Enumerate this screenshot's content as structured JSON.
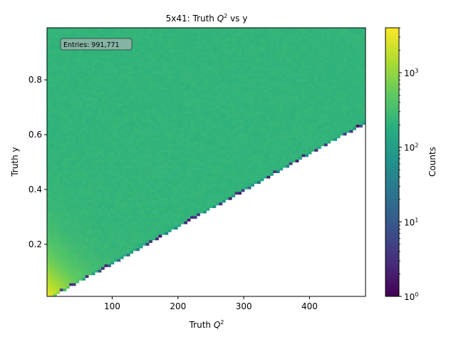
{
  "chart_data": {
    "type": "heatmap",
    "title_prefix": "5x41: Truth ",
    "title_var": "Q",
    "title_sup": "2",
    "title_suffix": " vs y",
    "xlabel_prefix": "Truth ",
    "xlabel_var": "Q",
    "xlabel_sup": "2",
    "ylabel": "Truth y",
    "xlim": [
      1,
      485
    ],
    "ylim": [
      0.01,
      0.99
    ],
    "x_ticks": [
      100,
      200,
      300,
      400
    ],
    "x_tick_labels": [
      "100",
      "200",
      "300",
      "400"
    ],
    "y_ticks": [
      0.2,
      0.4,
      0.6,
      0.8
    ],
    "y_tick_labels": [
      "0.2",
      "0.4",
      "0.6",
      "0.8"
    ],
    "annotation": "Entries: 991,771",
    "annotation_placement": "top-left",
    "kinematic_edge": {
      "description": "lower boundary y_min ≈ Q2/750",
      "slope": 0.001333
    },
    "bins": {
      "nx": 100,
      "ny": 100
    },
    "typical_counts": {
      "upper_region": 220,
      "near_edge": 150,
      "low_q2_low_y_peak": 3500
    },
    "colorbar": {
      "label": "Counts",
      "scale": "log",
      "range": [
        1,
        4000
      ],
      "tick_values": [
        1,
        10,
        100,
        1000
      ],
      "tick_base": "10",
      "tick_exponents": [
        "0",
        "1",
        "2",
        "3"
      ],
      "colormap": "viridis"
    }
  }
}
